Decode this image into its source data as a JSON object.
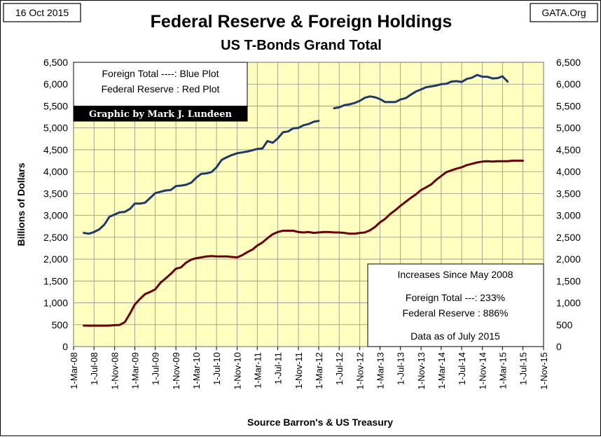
{
  "header": {
    "date": "16 Oct 2015",
    "site": "GATA.Org",
    "title": "Federal Reserve & Foreign Holdings",
    "subtitle": "US T-Bonds Grand Total"
  },
  "legend_box": {
    "line1": "Foreign Total ----: Blue Plot",
    "line2": "Federal Reserve : Red Plot",
    "credit": "Graphic by Mark J. Lundeen"
  },
  "info_box": {
    "heading": "Increases Since May 2008",
    "foreign": "Foreign Total ---:  233%",
    "fed": "Federal Reserve :  886%",
    "asof": "Data as of July 2015"
  },
  "colors": {
    "plot_bg": "#ffffc0",
    "foreign_line": "#1f3a68",
    "fed_line": "#6b0000",
    "grid": "#909090"
  },
  "chart_data": {
    "type": "line",
    "title": "Federal Reserve & Foreign Holdings",
    "subtitle": "US T-Bonds Grand Total",
    "ylabel": "Billions  of  Dollars",
    "xlabel": "Source Barron's & US Treasury",
    "ylim": [
      0,
      6500
    ],
    "yticks": [
      "0",
      "500",
      "1,000",
      "1,500",
      "2,000",
      "2,500",
      "3,000",
      "3,500",
      "4,000",
      "4,500",
      "5,000",
      "5,500",
      "6,000",
      "6,500"
    ],
    "xlim": [
      "2008-03-01",
      "2015-11-01"
    ],
    "xticks": [
      "1-Mar-08",
      "1-Jul-08",
      "1-Nov-08",
      "1-Mar-09",
      "1-Jul-09",
      "1-Nov-09",
      "1-Mar-10",
      "1-Jul-10",
      "1-Nov-10",
      "1-Mar-11",
      "1-Jul-11",
      "1-Nov-11",
      "1-Mar-12",
      "1-Jul-12",
      "1-Nov-12",
      "1-Mar-13",
      "1-Jul-13",
      "1-Nov-13",
      "1-Mar-14",
      "1-Jul-14",
      "1-Nov-14",
      "1-Mar-15",
      "1-Jul-15",
      "1-Nov-15"
    ],
    "grid": true,
    "series": [
      {
        "name": "Foreign Total",
        "color": "#1f3a68",
        "points": [
          [
            "2008-05-01",
            2600
          ],
          [
            "2008-06-01",
            2580
          ],
          [
            "2008-07-01",
            2620
          ],
          [
            "2008-08-01",
            2680
          ],
          [
            "2008-09-01",
            2790
          ],
          [
            "2008-10-01",
            2970
          ],
          [
            "2008-11-01",
            3020
          ],
          [
            "2008-12-01",
            3070
          ],
          [
            "2009-01-01",
            3080
          ],
          [
            "2009-02-01",
            3150
          ],
          [
            "2009-03-01",
            3270
          ],
          [
            "2009-04-01",
            3270
          ],
          [
            "2009-05-01",
            3290
          ],
          [
            "2009-06-01",
            3400
          ],
          [
            "2009-07-01",
            3510
          ],
          [
            "2009-08-01",
            3540
          ],
          [
            "2009-09-01",
            3570
          ],
          [
            "2009-10-01",
            3580
          ],
          [
            "2009-11-01",
            3670
          ],
          [
            "2009-12-01",
            3680
          ],
          [
            "2010-01-01",
            3700
          ],
          [
            "2010-02-01",
            3750
          ],
          [
            "2010-03-01",
            3860
          ],
          [
            "2010-04-01",
            3950
          ],
          [
            "2010-05-01",
            3960
          ],
          [
            "2010-06-01",
            3990
          ],
          [
            "2010-07-01",
            4100
          ],
          [
            "2010-08-01",
            4270
          ],
          [
            "2010-09-01",
            4330
          ],
          [
            "2010-10-01",
            4380
          ],
          [
            "2010-11-01",
            4420
          ],
          [
            "2010-12-01",
            4440
          ],
          [
            "2011-01-01",
            4460
          ],
          [
            "2011-02-01",
            4490
          ],
          [
            "2011-03-01",
            4520
          ],
          [
            "2011-04-01",
            4530
          ],
          [
            "2011-05-01",
            4700
          ],
          [
            "2011-06-01",
            4660
          ],
          [
            "2011-07-01",
            4760
          ],
          [
            "2011-08-01",
            4900
          ],
          [
            "2011-09-01",
            4920
          ],
          [
            "2011-10-01",
            4990
          ],
          [
            "2011-11-01",
            5000
          ],
          [
            "2011-12-01",
            5060
          ],
          [
            "2012-01-01",
            5090
          ],
          [
            "2012-02-01",
            5140
          ],
          [
            "2012-03-01",
            5160
          ],
          null,
          [
            "2012-06-01",
            5450
          ],
          [
            "2012-07-01",
            5470
          ],
          [
            "2012-08-01",
            5520
          ],
          [
            "2012-09-01",
            5540
          ],
          [
            "2012-10-01",
            5570
          ],
          [
            "2012-11-01",
            5620
          ],
          [
            "2012-12-01",
            5690
          ],
          [
            "2013-01-01",
            5720
          ],
          [
            "2013-02-01",
            5700
          ],
          [
            "2013-03-01",
            5660
          ],
          [
            "2013-04-01",
            5590
          ],
          [
            "2013-05-01",
            5590
          ],
          [
            "2013-06-01",
            5590
          ],
          [
            "2013-07-01",
            5650
          ],
          [
            "2013-08-01",
            5680
          ],
          [
            "2013-09-01",
            5760
          ],
          [
            "2013-10-01",
            5830
          ],
          [
            "2013-11-01",
            5880
          ],
          [
            "2013-12-01",
            5930
          ],
          [
            "2014-01-01",
            5950
          ],
          [
            "2014-02-01",
            5970
          ],
          [
            "2014-03-01",
            6000
          ],
          [
            "2014-04-01",
            6010
          ],
          [
            "2014-05-01",
            6060
          ],
          [
            "2014-06-01",
            6070
          ],
          [
            "2014-07-01",
            6050
          ],
          [
            "2014-08-01",
            6120
          ],
          [
            "2014-09-01",
            6150
          ],
          [
            "2014-10-01",
            6210
          ],
          [
            "2014-11-01",
            6170
          ],
          [
            "2014-12-01",
            6170
          ],
          [
            "2015-01-01",
            6130
          ],
          [
            "2015-02-01",
            6140
          ],
          [
            "2015-03-01",
            6180
          ],
          [
            "2015-04-01",
            6060
          ]
        ]
      },
      {
        "name": "Federal Reserve",
        "color": "#6b0000",
        "points": [
          [
            "2008-05-01",
            480
          ],
          [
            "2008-06-01",
            478
          ],
          [
            "2008-07-01",
            478
          ],
          [
            "2008-08-01",
            478
          ],
          [
            "2008-09-01",
            478
          ],
          [
            "2008-10-01",
            480
          ],
          [
            "2008-11-01",
            490
          ],
          [
            "2008-12-01",
            495
          ],
          [
            "2009-01-01",
            560
          ],
          [
            "2009-02-01",
            760
          ],
          [
            "2009-03-01",
            960
          ],
          [
            "2009-04-01",
            1090
          ],
          [
            "2009-05-01",
            1200
          ],
          [
            "2009-06-01",
            1250
          ],
          [
            "2009-07-01",
            1310
          ],
          [
            "2009-08-01",
            1460
          ],
          [
            "2009-09-01",
            1560
          ],
          [
            "2009-10-01",
            1660
          ],
          [
            "2009-11-01",
            1780
          ],
          [
            "2009-12-01",
            1810
          ],
          [
            "2010-01-01",
            1920
          ],
          [
            "2010-02-01",
            1990
          ],
          [
            "2010-03-01",
            2020
          ],
          [
            "2010-04-01",
            2040
          ],
          [
            "2010-05-01",
            2060
          ],
          [
            "2010-06-01",
            2070
          ],
          [
            "2010-07-01",
            2060
          ],
          [
            "2010-08-01",
            2060
          ],
          [
            "2010-09-01",
            2060
          ],
          [
            "2010-10-01",
            2050
          ],
          [
            "2010-11-01",
            2040
          ],
          [
            "2010-12-01",
            2090
          ],
          [
            "2011-01-01",
            2160
          ],
          [
            "2011-02-01",
            2220
          ],
          [
            "2011-03-01",
            2310
          ],
          [
            "2011-04-01",
            2380
          ],
          [
            "2011-05-01",
            2480
          ],
          [
            "2011-06-01",
            2570
          ],
          [
            "2011-07-01",
            2620
          ],
          [
            "2011-08-01",
            2650
          ],
          [
            "2011-09-01",
            2650
          ],
          [
            "2011-10-01",
            2650
          ],
          [
            "2011-11-01",
            2620
          ],
          [
            "2011-12-01",
            2610
          ],
          [
            "2012-01-01",
            2620
          ],
          [
            "2012-02-01",
            2600
          ],
          [
            "2012-03-01",
            2610
          ],
          [
            "2012-04-01",
            2620
          ],
          [
            "2012-05-01",
            2620
          ],
          [
            "2012-06-01",
            2610
          ],
          [
            "2012-07-01",
            2610
          ],
          [
            "2012-08-01",
            2600
          ],
          [
            "2012-09-01",
            2580
          ],
          [
            "2012-10-01",
            2580
          ],
          [
            "2012-11-01",
            2600
          ],
          [
            "2012-12-01",
            2610
          ],
          [
            "2013-01-01",
            2660
          ],
          [
            "2013-02-01",
            2740
          ],
          [
            "2013-03-01",
            2840
          ],
          [
            "2013-04-01",
            2920
          ],
          [
            "2013-05-01",
            3030
          ],
          [
            "2013-06-01",
            3120
          ],
          [
            "2013-07-01",
            3220
          ],
          [
            "2013-08-01",
            3310
          ],
          [
            "2013-09-01",
            3400
          ],
          [
            "2013-10-01",
            3480
          ],
          [
            "2013-11-01",
            3580
          ],
          [
            "2013-12-01",
            3640
          ],
          [
            "2014-01-01",
            3710
          ],
          [
            "2014-02-01",
            3820
          ],
          [
            "2014-03-01",
            3900
          ],
          [
            "2014-04-01",
            3990
          ],
          [
            "2014-05-01",
            4030
          ],
          [
            "2014-06-01",
            4070
          ],
          [
            "2014-07-01",
            4100
          ],
          [
            "2014-08-01",
            4150
          ],
          [
            "2014-09-01",
            4180
          ],
          [
            "2014-10-01",
            4210
          ],
          [
            "2014-11-01",
            4230
          ],
          [
            "2014-12-01",
            4240
          ],
          [
            "2015-01-01",
            4230
          ],
          [
            "2015-02-01",
            4240
          ],
          [
            "2015-03-01",
            4240
          ],
          [
            "2015-04-01",
            4240
          ],
          [
            "2015-05-01",
            4250
          ],
          [
            "2015-06-01",
            4250
          ],
          [
            "2015-07-01",
            4250
          ]
        ]
      }
    ]
  }
}
